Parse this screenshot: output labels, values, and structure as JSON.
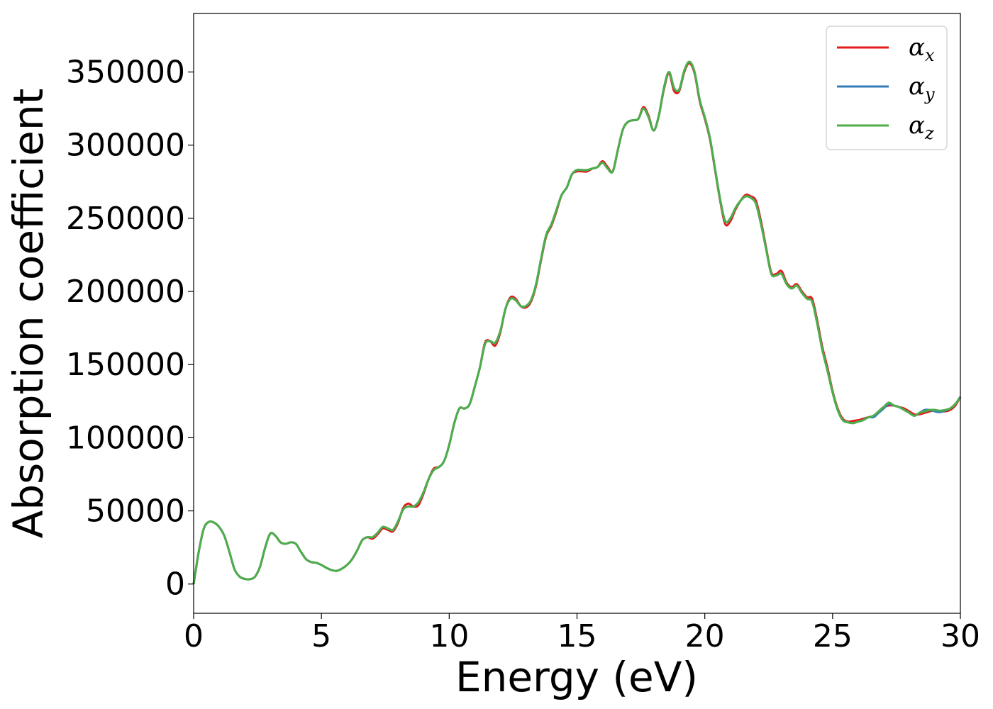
{
  "chart_data": {
    "type": "line",
    "title": "",
    "xlabel": "Energy (eV)",
    "ylabel": "Absorption coefficient",
    "xlim": [
      0,
      30
    ],
    "ylim": [
      -20000,
      390000
    ],
    "xticks": [
      0,
      5,
      10,
      15,
      20,
      25,
      30
    ],
    "yticks": [
      0,
      50000,
      100000,
      150000,
      200000,
      250000,
      300000,
      350000
    ],
    "grid": false,
    "legend_position": "top-right",
    "series": [
      {
        "name": "α_x",
        "label_main": "α",
        "label_sub": "x",
        "color": "#e41a1c",
        "x": [
          0,
          0.2,
          0.4,
          0.6,
          0.8,
          1.0,
          1.2,
          1.4,
          1.6,
          1.8,
          2.0,
          2.2,
          2.4,
          2.6,
          2.8,
          3.0,
          3.2,
          3.4,
          3.6,
          3.8,
          4.0,
          4.2,
          4.4,
          4.6,
          4.8,
          5.0,
          5.2,
          5.4,
          5.6,
          5.8,
          6.0,
          6.2,
          6.4,
          6.6,
          6.8,
          7.0,
          7.2,
          7.4,
          7.6,
          7.8,
          8.0,
          8.2,
          8.4,
          8.6,
          8.8,
          9.0,
          9.2,
          9.4,
          9.6,
          9.8,
          10.0,
          10.2,
          10.4,
          10.6,
          10.8,
          11.0,
          11.2,
          11.4,
          11.6,
          11.8,
          12.0,
          12.2,
          12.4,
          12.6,
          12.8,
          13.0,
          13.2,
          13.4,
          13.6,
          13.8,
          14.0,
          14.2,
          14.4,
          14.6,
          14.8,
          15.0,
          15.2,
          15.4,
          15.6,
          15.8,
          16.0,
          16.2,
          16.4,
          16.6,
          16.8,
          17.0,
          17.2,
          17.4,
          17.6,
          17.8,
          18.0,
          18.2,
          18.4,
          18.6,
          18.8,
          19.0,
          19.2,
          19.4,
          19.6,
          19.8,
          20.0,
          20.2,
          20.4,
          20.6,
          20.8,
          21.0,
          21.2,
          21.4,
          21.6,
          21.8,
          22.0,
          22.2,
          22.4,
          22.6,
          22.8,
          23.0,
          23.2,
          23.4,
          23.6,
          23.8,
          24.0,
          24.2,
          24.4,
          24.6,
          24.8,
          25.0,
          25.2,
          25.4,
          25.6,
          25.8,
          26.0,
          26.2,
          26.4,
          26.6,
          26.8,
          27.0,
          27.2,
          27.4,
          27.6,
          27.8,
          28.0,
          28.2,
          28.4,
          28.6,
          28.8,
          29.0,
          29.2,
          29.4,
          29.6,
          29.8,
          30.0
        ],
        "y": [
          0,
          22000,
          38000,
          42500,
          42000,
          39000,
          33000,
          22000,
          10000,
          5000,
          3500,
          3300,
          5000,
          12000,
          25000,
          34500,
          33000,
          28500,
          27500,
          28500,
          27500,
          22000,
          17000,
          15000,
          14500,
          13000,
          11000,
          9500,
          9000,
          10500,
          13000,
          17000,
          23000,
          30000,
          32000,
          31000,
          34000,
          38000,
          37000,
          36000,
          42000,
          52000,
          55000,
          53000,
          54000,
          62000,
          72000,
          79000,
          80000,
          84000,
          95000,
          110000,
          120000,
          120000,
          123000,
          135000,
          148000,
          165000,
          166000,
          163000,
          172000,
          188000,
          196000,
          195000,
          190000,
          189000,
          193000,
          204000,
          222000,
          238000,
          245000,
          255000,
          266000,
          271000,
          280000,
          282000,
          282000,
          282000,
          284000,
          285000,
          289000,
          285000,
          282000,
          297000,
          311000,
          316000,
          317000,
          318000,
          326000,
          320000,
          310000,
          320000,
          338000,
          349000,
          337000,
          337000,
          350000,
          356000,
          349000,
          330000,
          318000,
          304000,
          283000,
          262000,
          246000,
          248000,
          256000,
          262000,
          266000,
          265000,
          262000,
          248000,
          230000,
          213000,
          212000,
          214000,
          206000,
          203000,
          205000,
          200000,
          196000,
          195000,
          180000,
          162000,
          148000,
          132000,
          120000,
          113000,
          111000,
          111500,
          112000,
          113000,
          114000,
          115000,
          118000,
          121000,
          122000,
          122000,
          121000,
          120000,
          118000,
          116000,
          116000,
          117000,
          118000,
          119000,
          118000,
          118000,
          119000,
          122000,
          128000
        ]
      },
      {
        "name": "α_y",
        "label_main": "α",
        "label_sub": "y",
        "color": "#377eb8",
        "x": [
          0,
          0.2,
          0.4,
          0.6,
          0.8,
          1.0,
          1.2,
          1.4,
          1.6,
          1.8,
          2.0,
          2.2,
          2.4,
          2.6,
          2.8,
          3.0,
          3.2,
          3.4,
          3.6,
          3.8,
          4.0,
          4.2,
          4.4,
          4.6,
          4.8,
          5.0,
          5.2,
          5.4,
          5.6,
          5.8,
          6.0,
          6.2,
          6.4,
          6.6,
          6.8,
          7.0,
          7.2,
          7.4,
          7.6,
          7.8,
          8.0,
          8.2,
          8.4,
          8.6,
          8.8,
          9.0,
          9.2,
          9.4,
          9.6,
          9.8,
          10.0,
          10.2,
          10.4,
          10.6,
          10.8,
          11.0,
          11.2,
          11.4,
          11.6,
          11.8,
          12.0,
          12.2,
          12.4,
          12.6,
          12.8,
          13.0,
          13.2,
          13.4,
          13.6,
          13.8,
          14.0,
          14.2,
          14.4,
          14.6,
          14.8,
          15.0,
          15.2,
          15.4,
          15.6,
          15.8,
          16.0,
          16.2,
          16.4,
          16.6,
          16.8,
          17.0,
          17.2,
          17.4,
          17.6,
          17.8,
          18.0,
          18.2,
          18.4,
          18.6,
          18.8,
          19.0,
          19.2,
          19.4,
          19.6,
          19.8,
          20.0,
          20.2,
          20.4,
          20.6,
          20.8,
          21.0,
          21.2,
          21.4,
          21.6,
          21.8,
          22.0,
          22.2,
          22.4,
          22.6,
          22.8,
          23.0,
          23.2,
          23.4,
          23.6,
          23.8,
          24.0,
          24.2,
          24.4,
          24.6,
          24.8,
          25.0,
          25.2,
          25.4,
          25.6,
          25.8,
          26.0,
          26.2,
          26.4,
          26.6,
          26.8,
          27.0,
          27.2,
          27.4,
          27.6,
          27.8,
          28.0,
          28.2,
          28.4,
          28.6,
          28.8,
          29.0,
          29.2,
          29.4,
          29.6,
          29.8,
          30.0
        ],
        "y": [
          0,
          22000,
          38000,
          42500,
          42000,
          39000,
          33000,
          22000,
          10000,
          5000,
          3500,
          3300,
          5000,
          12000,
          25000,
          34500,
          33000,
          28500,
          27500,
          28500,
          27500,
          22000,
          17000,
          15000,
          14500,
          13000,
          11000,
          9500,
          9000,
          10500,
          13000,
          17000,
          23000,
          30000,
          32000,
          32000,
          35000,
          39000,
          38000,
          37000,
          43000,
          51000,
          53000,
          53000,
          56000,
          63000,
          72000,
          78000,
          80000,
          84000,
          95000,
          110000,
          120000,
          120000,
          123000,
          135000,
          148000,
          164000,
          166000,
          165000,
          173000,
          188000,
          195000,
          194000,
          190000,
          190000,
          194000,
          205000,
          223000,
          239000,
          246000,
          256000,
          266000,
          271000,
          280000,
          283000,
          283000,
          283000,
          284000,
          285000,
          288000,
          284000,
          282000,
          297000,
          311000,
          316000,
          317000,
          318000,
          325000,
          319000,
          310000,
          320000,
          339000,
          350000,
          339000,
          338000,
          351000,
          357000,
          350000,
          331000,
          319000,
          305000,
          284000,
          263000,
          248000,
          250000,
          257000,
          262000,
          265000,
          264000,
          260000,
          246000,
          229000,
          212000,
          211000,
          212000,
          205000,
          202000,
          204000,
          199000,
          195000,
          193000,
          178000,
          160000,
          146000,
          131000,
          119000,
          112000,
          110500,
          110000,
          111000,
          112000,
          114000,
          114000,
          117000,
          120000,
          123000,
          122000,
          121000,
          119000,
          117000,
          115000,
          117000,
          119000,
          119000,
          118000,
          117500,
          118500,
          120000,
          123000,
          128000
        ]
      },
      {
        "name": "α_z",
        "label_main": "α",
        "label_sub": "z",
        "color": "#4daf4a",
        "x": [
          0,
          0.2,
          0.4,
          0.6,
          0.8,
          1.0,
          1.2,
          1.4,
          1.6,
          1.8,
          2.0,
          2.2,
          2.4,
          2.6,
          2.8,
          3.0,
          3.2,
          3.4,
          3.6,
          3.8,
          4.0,
          4.2,
          4.4,
          4.6,
          4.8,
          5.0,
          5.2,
          5.4,
          5.6,
          5.8,
          6.0,
          6.2,
          6.4,
          6.6,
          6.8,
          7.0,
          7.2,
          7.4,
          7.6,
          7.8,
          8.0,
          8.2,
          8.4,
          8.6,
          8.8,
          9.0,
          9.2,
          9.4,
          9.6,
          9.8,
          10.0,
          10.2,
          10.4,
          10.6,
          10.8,
          11.0,
          11.2,
          11.4,
          11.6,
          11.8,
          12.0,
          12.2,
          12.4,
          12.6,
          12.8,
          13.0,
          13.2,
          13.4,
          13.6,
          13.8,
          14.0,
          14.2,
          14.4,
          14.6,
          14.8,
          15.0,
          15.2,
          15.4,
          15.6,
          15.8,
          16.0,
          16.2,
          16.4,
          16.6,
          16.8,
          17.0,
          17.2,
          17.4,
          17.6,
          17.8,
          18.0,
          18.2,
          18.4,
          18.6,
          18.8,
          19.0,
          19.2,
          19.4,
          19.6,
          19.8,
          20.0,
          20.2,
          20.4,
          20.6,
          20.8,
          21.0,
          21.2,
          21.4,
          21.6,
          21.8,
          22.0,
          22.2,
          22.4,
          22.6,
          22.8,
          23.0,
          23.2,
          23.4,
          23.6,
          23.8,
          24.0,
          24.2,
          24.4,
          24.6,
          24.8,
          25.0,
          25.2,
          25.4,
          25.6,
          25.8,
          26.0,
          26.2,
          26.4,
          26.6,
          26.8,
          27.0,
          27.2,
          27.4,
          27.6,
          27.8,
          28.0,
          28.2,
          28.4,
          28.6,
          28.8,
          29.0,
          29.2,
          29.4,
          29.6,
          29.8,
          30.0
        ],
        "y": [
          0,
          22000,
          38000,
          42500,
          42000,
          39000,
          33000,
          22000,
          10000,
          5000,
          3500,
          3300,
          5000,
          12000,
          25000,
          34500,
          33000,
          28500,
          27500,
          28500,
          27500,
          22000,
          17000,
          15000,
          14500,
          13000,
          11000,
          9500,
          9000,
          10500,
          13000,
          17000,
          23000,
          30000,
          32000,
          32000,
          35000,
          39000,
          38000,
          37000,
          43000,
          51000,
          53000,
          53000,
          56000,
          63000,
          72000,
          78000,
          80000,
          84000,
          95000,
          110000,
          120000,
          120000,
          123000,
          135000,
          148000,
          164000,
          166000,
          165000,
          173000,
          188000,
          195000,
          194000,
          190000,
          190000,
          194000,
          205000,
          223000,
          239000,
          246000,
          256000,
          266000,
          271000,
          280000,
          283000,
          283000,
          283000,
          284000,
          285000,
          288000,
          284000,
          282000,
          297000,
          311000,
          316000,
          317000,
          318000,
          325000,
          319000,
          310000,
          320000,
          339000,
          350000,
          339000,
          338000,
          351000,
          357000,
          350000,
          331000,
          319000,
          305000,
          284000,
          263000,
          248000,
          250000,
          257000,
          262000,
          265000,
          264000,
          260000,
          246000,
          229000,
          212000,
          211000,
          212000,
          205000,
          202000,
          204000,
          199000,
          195000,
          193000,
          178000,
          160000,
          146000,
          131000,
          119000,
          112000,
          110500,
          110000,
          111000,
          112000,
          114000,
          115000,
          118000,
          121000,
          124000,
          122000,
          121000,
          119000,
          117000,
          115000,
          117000,
          118000,
          119000,
          119000,
          118500,
          119000,
          120000,
          123000,
          128000
        ]
      }
    ]
  }
}
